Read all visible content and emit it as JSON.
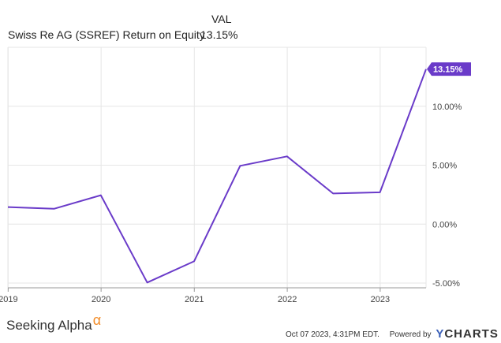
{
  "header": {
    "column_label": "VAL",
    "series_label": "Swiss Re AG (SSREF) Return on Equity",
    "current_value": "13.15%"
  },
  "colors": {
    "line": "#6a3bc9",
    "grid": "#e6e6e6",
    "axis_text": "#444444",
    "badge_bg": "#6a3bc9",
    "badge_text": "#ffffff"
  },
  "chart_data": {
    "type": "line",
    "title": "",
    "xlabel": "",
    "ylabel": "",
    "series": [
      {
        "name": "Swiss Re AG (SSREF) Return on Equity",
        "x": [
          "2018-12-31",
          "2019-06-30",
          "2019-12-31",
          "2020-06-30",
          "2020-12-31",
          "2021-06-30",
          "2021-12-31",
          "2022-06-30",
          "2022-12-31",
          "2023-06-30"
        ],
        "values": [
          1.45,
          1.3,
          2.45,
          -4.95,
          -3.15,
          4.95,
          5.75,
          2.6,
          2.7,
          13.15
        ]
      }
    ],
    "x_ticks": [
      "2019",
      "2020",
      "2021",
      "2022",
      "2023"
    ],
    "y_ticks": [
      -5,
      0,
      5,
      10
    ],
    "y_tick_labels": [
      "-5.00%",
      "0.00%",
      "5.00%",
      "10.00%"
    ],
    "ylim": [
      -5.4,
      15.0
    ],
    "xlim": [
      "2018-12-31",
      "2023-06-30"
    ],
    "grid": true,
    "last_value_label": "13.15%"
  },
  "footer": {
    "brand": "Seeking Alpha",
    "brand_mark": "α",
    "timestamp": "Oct 07 2023, 4:31PM EDT.",
    "powered_by": "Powered by",
    "provider_y": "Y",
    "provider_rest": "CHARTS"
  }
}
